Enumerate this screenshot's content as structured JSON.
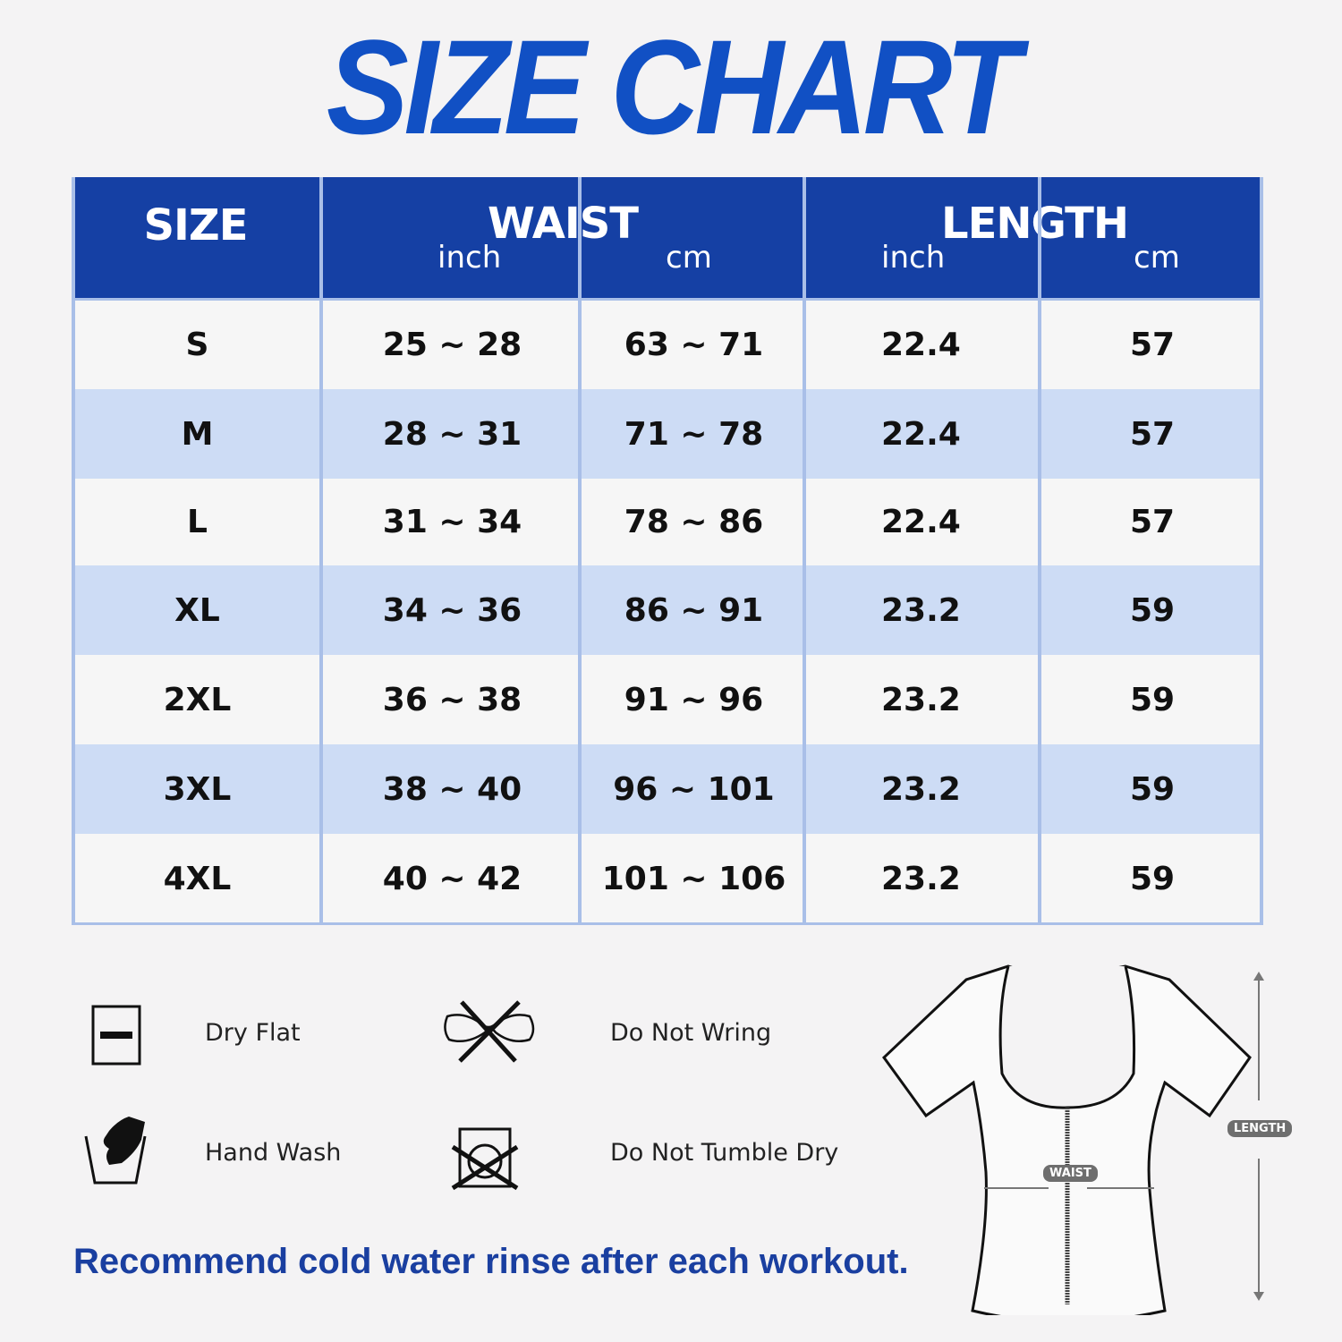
{
  "title": "SIZE CHART",
  "colors": {
    "header_bg": "#1540a4",
    "title": "#1150c4",
    "row_alt": "#cddcf5",
    "row": "#f6f6f6",
    "note": "#1a3fa0"
  },
  "table": {
    "headers": {
      "size": "SIZE",
      "waist": "WAIST",
      "length": "LENGTH",
      "inch": "inch",
      "cm": "cm"
    },
    "rows": [
      {
        "size": "S",
        "waist_in": "25 ~ 28",
        "waist_cm": "63 ~ 71",
        "length_in": "22.4",
        "length_cm": "57"
      },
      {
        "size": "M",
        "waist_in": "28 ~ 31",
        "waist_cm": "71 ~ 78",
        "length_in": "22.4",
        "length_cm": "57"
      },
      {
        "size": "L",
        "waist_in": "31 ~ 34",
        "waist_cm": "78 ~ 86",
        "length_in": "22.4",
        "length_cm": "57"
      },
      {
        "size": "XL",
        "waist_in": "34 ~ 36",
        "waist_cm": "86 ~ 91",
        "length_in": "23.2",
        "length_cm": "59"
      },
      {
        "size": "2XL",
        "waist_in": "36 ~ 38",
        "waist_cm": "91 ~ 96",
        "length_in": "23.2",
        "length_cm": "59"
      },
      {
        "size": "3XL",
        "waist_in": "38 ~ 40",
        "waist_cm": "96 ~ 101",
        "length_in": "23.2",
        "length_cm": "59"
      },
      {
        "size": "4XL",
        "waist_in": "40 ~ 42",
        "waist_cm": "101 ~ 106",
        "length_in": "23.2",
        "length_cm": "59"
      }
    ]
  },
  "care": [
    {
      "icon": "dry-flat-icon",
      "label": "Dry Flat"
    },
    {
      "icon": "do-not-wring-icon",
      "label": "Do Not Wring"
    },
    {
      "icon": "hand-wash-icon",
      "label": "Hand Wash"
    },
    {
      "icon": "do-not-tumble-dry-icon",
      "label": "Do Not Tumble Dry"
    }
  ],
  "note": "Recommend cold water rinse after each workout.",
  "diagram": {
    "waist_label": "WAIST",
    "length_label": "LENGTH"
  }
}
